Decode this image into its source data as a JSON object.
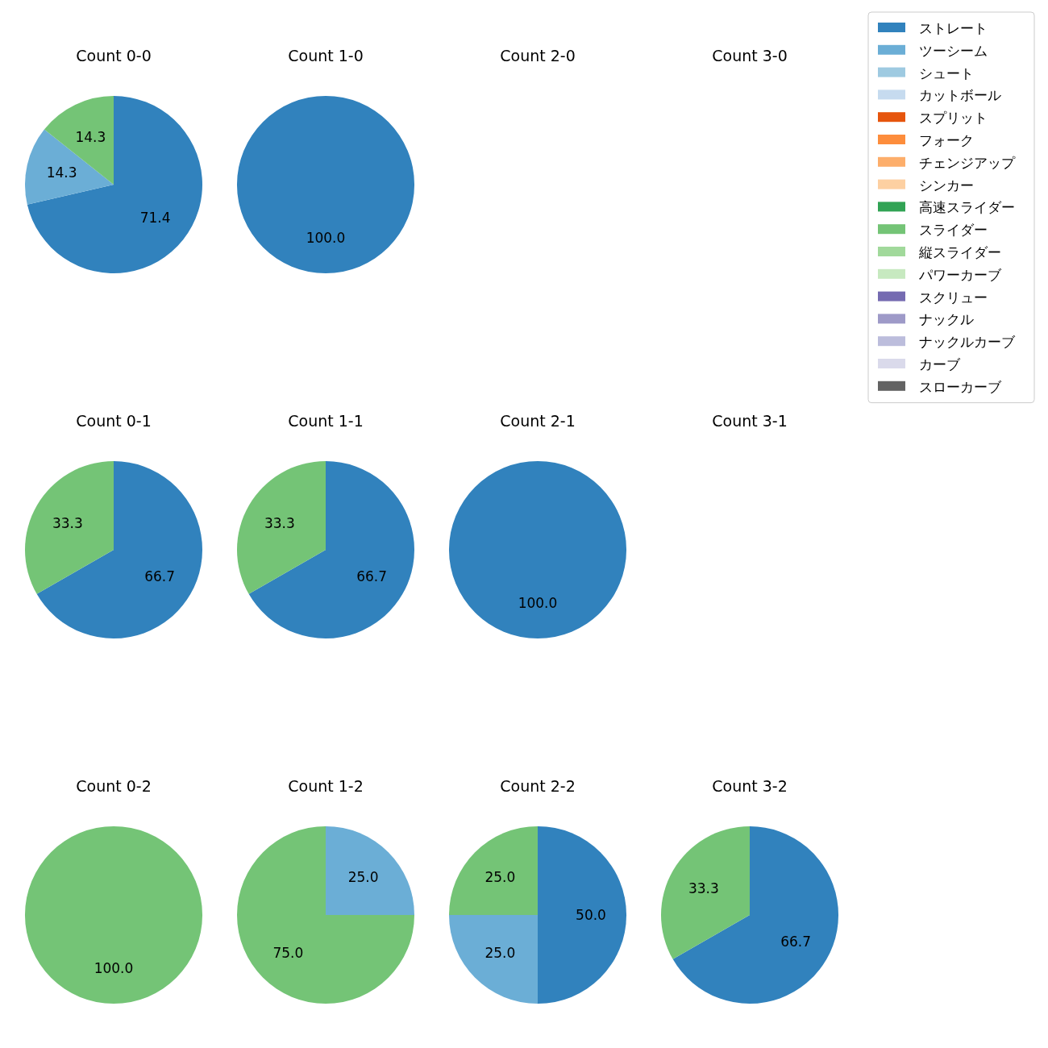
{
  "chart_data": [
    {
      "type": "pie",
      "title": "Count 0-0",
      "categories": [
        "ストレート",
        "ツーシーム",
        "シュート",
        "カットボール",
        "スプリット",
        "フォーク",
        "チェンジアップ",
        "シンカー",
        "高速スライダー",
        "スライダー",
        "縦スライダー",
        "パワーカーブ",
        "スクリュー",
        "ナックル",
        "ナックルカーブ",
        "カーブ",
        "スローカーブ"
      ],
      "values": [
        71.4,
        14.3,
        0,
        0,
        0,
        0,
        0,
        0,
        0,
        14.3,
        0,
        0,
        0,
        0,
        0,
        0,
        0
      ],
      "value_labels": [
        "71.4",
        "14.3",
        null,
        null,
        null,
        null,
        null,
        null,
        null,
        "14.3",
        null,
        null,
        null,
        null,
        null,
        null,
        null
      ],
      "colors": [
        "#3182bd",
        "#6baed6",
        "#9ecae1",
        "#c6dbef",
        "#e6550d",
        "#fd8d3c",
        "#fdae6b",
        "#fdd0a2",
        "#31a354",
        "#74c476",
        "#a1d99b",
        "#c7e9c0",
        "#756bb1",
        "#9e9ac8",
        "#bcbddc",
        "#dadaeb",
        "#636363"
      ],
      "legend": "right"
    },
    {
      "type": "pie",
      "title": "Count 1-0",
      "categories": [
        null
      ],
      "values": [
        100
      ],
      "value_labels": [
        "100.0"
      ],
      "colors": [
        "#3182bd"
      ]
    },
    {
      "type": "pie",
      "title": "Count 2-0"
    },
    {
      "type": "pie",
      "title": "Count 3-0"
    },
    {
      "type": "pie",
      "title": "Count 0-1",
      "categories": [
        null,
        null
      ],
      "values": [
        66.7,
        33.3
      ],
      "value_labels": [
        "66.7",
        "33.3"
      ],
      "colors": [
        "#3182bd",
        "#74c476"
      ]
    },
    {
      "type": "pie",
      "title": "Count 1-1",
      "categories": [
        null,
        null
      ],
      "values": [
        66.7,
        33.3
      ],
      "value_labels": [
        "66.7",
        "33.3"
      ],
      "colors": [
        "#3182bd",
        "#74c476"
      ]
    },
    {
      "type": "pie",
      "title": "Count 2-1",
      "categories": [
        null
      ],
      "values": [
        100
      ],
      "value_labels": [
        "100.0"
      ],
      "colors": [
        "#3182bd"
      ]
    },
    {
      "type": "pie",
      "title": "Count 3-1"
    },
    {
      "type": "pie",
      "title": "Count 0-2",
      "categories": [
        null
      ],
      "values": [
        100
      ],
      "value_labels": [
        "100.0"
      ],
      "colors": [
        "#74c476"
      ]
    },
    {
      "type": "pie",
      "title": "Count 1-2",
      "categories": [
        null,
        null
      ],
      "values": [
        25,
        75
      ],
      "value_labels": [
        "25.0",
        "75.0"
      ],
      "colors": [
        "#6baed6",
        "#74c476"
      ]
    },
    {
      "type": "pie",
      "title": "Count 2-2",
      "categories": [
        null,
        null,
        null
      ],
      "values": [
        50,
        25,
        25
      ],
      "value_labels": [
        "50.0",
        "25.0",
        "25.0"
      ],
      "colors": [
        "#3182bd",
        "#6baed6",
        "#74c476"
      ]
    },
    {
      "type": "pie",
      "title": "Count 3-2",
      "categories": [
        null,
        null
      ],
      "values": [
        66.7,
        33.3
      ],
      "value_labels": [
        "66.7",
        "33.3"
      ],
      "colors": [
        "#3182bd",
        "#74c476"
      ]
    }
  ]
}
